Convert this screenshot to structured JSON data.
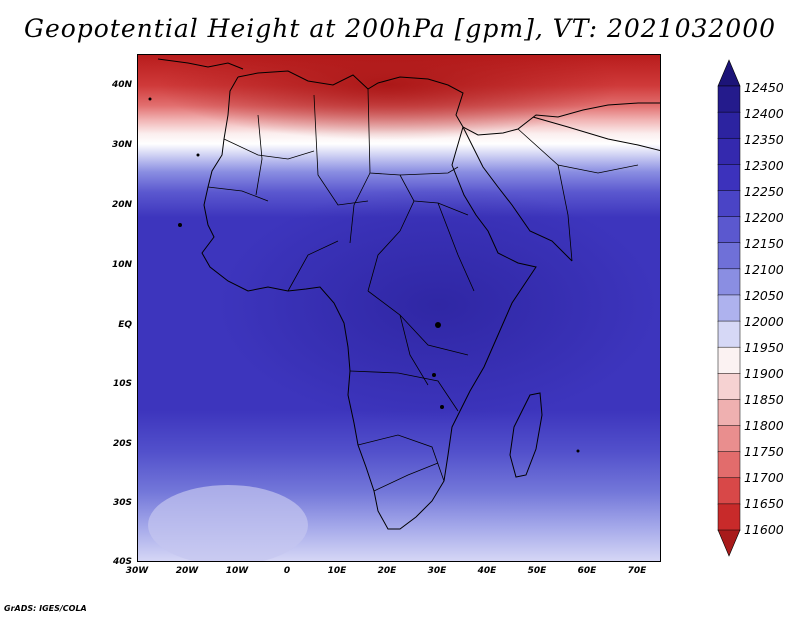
{
  "title": "Geopotential Height at 200hPa [gpm], VT: 2021032000",
  "footer": "GrADS: IGES/COLA",
  "map": {
    "lat_labels": [
      "40N",
      "30N",
      "20N",
      "10N",
      "EQ",
      "10S",
      "20S",
      "30S",
      "40S"
    ],
    "lon_labels": [
      "30W",
      "20W",
      "10W",
      "0",
      "10E",
      "20E",
      "30E",
      "40E",
      "50E",
      "60E",
      "70E"
    ],
    "lon_range": [
      -30,
      75
    ],
    "lat_range": [
      -40,
      45
    ]
  },
  "colorbar": {
    "levels": [
      "12450",
      "12400",
      "12350",
      "12300",
      "12250",
      "12200",
      "12150",
      "12100",
      "12050",
      "12000",
      "11950",
      "11900",
      "11850",
      "11800",
      "11750",
      "11700",
      "11650",
      "11600"
    ],
    "colors": [
      "#1c1478",
      "#241b8c",
      "#2c23a0",
      "#3429ae",
      "#3c32bc",
      "#4a44c6",
      "#5b58cf",
      "#6f70d8",
      "#8a8ee2",
      "#aeb2ee",
      "#d6d8f6",
      "#fbf2f2",
      "#f6d2d2",
      "#efb0b0",
      "#e98e8e",
      "#e26c6c",
      "#d84848",
      "#c82a2a",
      "#a81a1a"
    ]
  },
  "chart_data": {
    "type": "heatmap",
    "title": "Geopotential Height at 200hPa [gpm], VT: 2021032000",
    "xlabel": "",
    "ylabel": "",
    "x_ticks": [
      "30W",
      "20W",
      "10W",
      "0",
      "10E",
      "20E",
      "30E",
      "40E",
      "50E",
      "60E",
      "70E"
    ],
    "y_ticks": [
      "40N",
      "30N",
      "20N",
      "10N",
      "EQ",
      "10S",
      "20S",
      "30S",
      "40S"
    ],
    "xlim": [
      -30,
      75
    ],
    "ylim": [
      -40,
      45
    ],
    "colorbar_levels": [
      12450,
      12400,
      12350,
      12300,
      12250,
      12200,
      12150,
      12100,
      12050,
      12000,
      11950,
      11900,
      11850,
      11800,
      11750,
      11700,
      11650,
      11600
    ],
    "zonal_profile_gpm": [
      {
        "lat": 45,
        "value": 11650
      },
      {
        "lat": 40,
        "value": 11700
      },
      {
        "lat": 35,
        "value": 11850
      },
      {
        "lat": 30,
        "value": 12000
      },
      {
        "lat": 25,
        "value": 12200
      },
      {
        "lat": 20,
        "value": 12300
      },
      {
        "lat": 10,
        "value": 12350
      },
      {
        "lat": 0,
        "value": 12350
      },
      {
        "lat": -10,
        "value": 12350
      },
      {
        "lat": -20,
        "value": 12350
      },
      {
        "lat": -25,
        "value": 12300
      },
      {
        "lat": -30,
        "value": 12250
      },
      {
        "lat": -35,
        "value": 12150
      },
      {
        "lat": -40,
        "value": 12100
      }
    ]
  }
}
